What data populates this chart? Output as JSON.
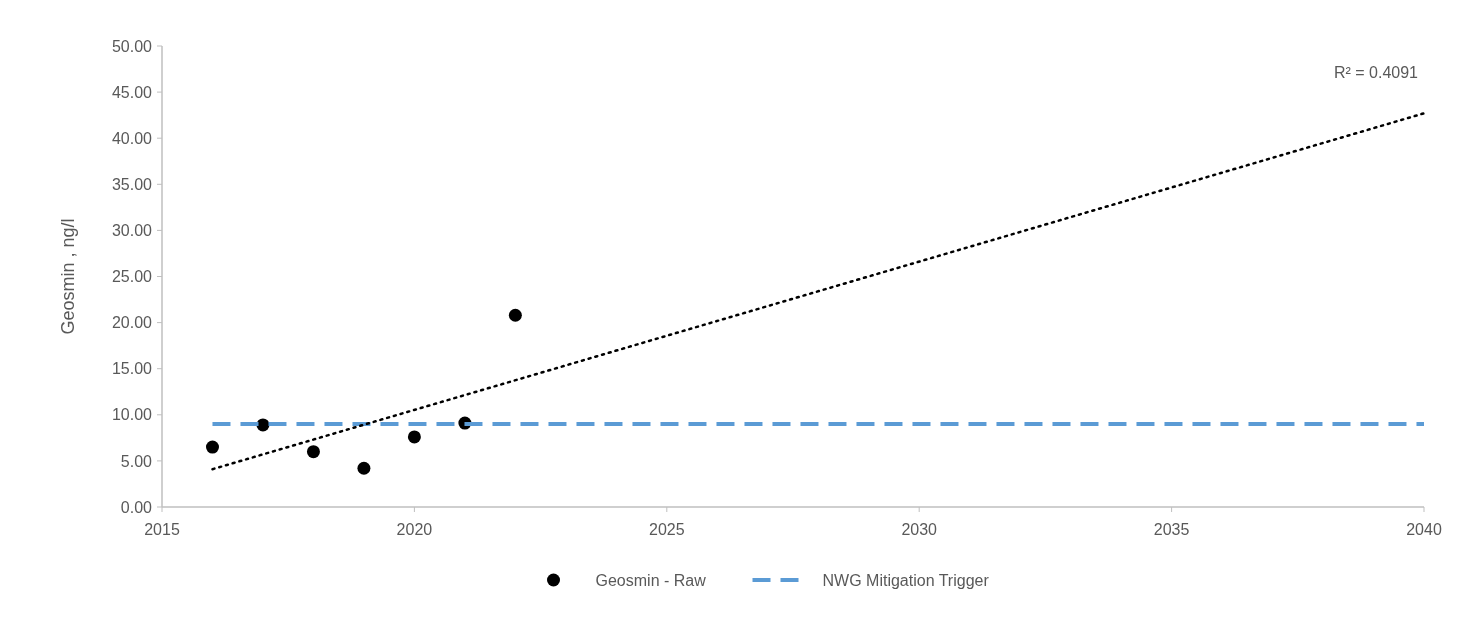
{
  "chart_data": {
    "type": "scatter",
    "ylabel": "Geosmin , ng/l",
    "xlim": [
      2015,
      2040
    ],
    "xticks": [
      2015,
      2020,
      2025,
      2030,
      2035,
      2040
    ],
    "ylim": [
      0,
      50
    ],
    "yticks": [
      {
        "value": 0,
        "label": "0.00"
      },
      {
        "value": 5,
        "label": "5.00"
      },
      {
        "value": 10,
        "label": "10.00"
      },
      {
        "value": 15,
        "label": "15.00"
      },
      {
        "value": 20,
        "label": "20.00"
      },
      {
        "value": 25,
        "label": "25.00"
      },
      {
        "value": 30,
        "label": "30.00"
      },
      {
        "value": 35,
        "label": "35.00"
      },
      {
        "value": 40,
        "label": "40.00"
      },
      {
        "value": 45,
        "label": "45.00"
      },
      {
        "value": 50,
        "label": "50.00"
      }
    ],
    "grid": false,
    "legend": "bottom",
    "annotations": [
      "R² = 0.4091"
    ],
    "series": [
      {
        "name": "Geosmin - Raw",
        "color": "#000000",
        "marker": "circle",
        "x": [
          2016,
          2017,
          2018,
          2019,
          2020,
          2021,
          2022
        ],
        "values": [
          6.5,
          8.9,
          6.0,
          4.2,
          7.6,
          9.1,
          20.8
        ]
      },
      {
        "name": "NWG Mitigation Trigger",
        "type": "line",
        "color": "#5b9bd5",
        "marker": "none",
        "line_style": "dashed",
        "x": [
          2016,
          2040
        ],
        "values": [
          9.0,
          9.0
        ]
      },
      {
        "type": "line",
        "color": "#000000",
        "marker": "none",
        "line_style": "dotted",
        "x": [
          2016,
          2040
        ],
        "values": [
          4.1,
          42.7
        ]
      }
    ]
  }
}
